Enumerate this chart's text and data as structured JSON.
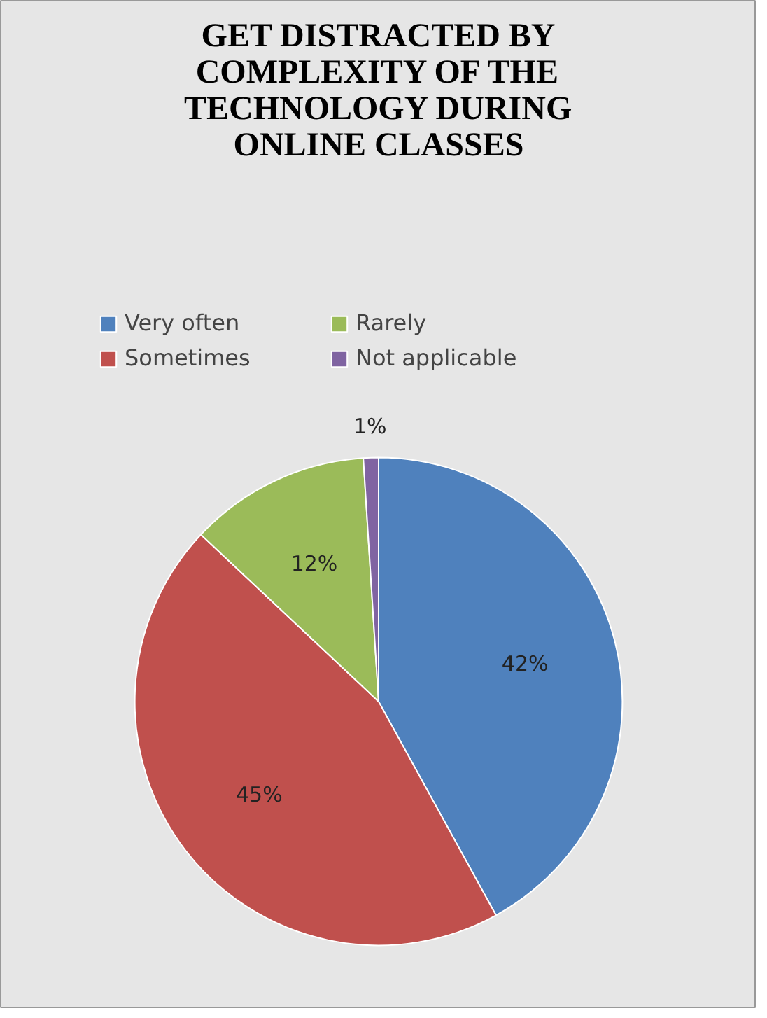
{
  "chart_data": {
    "type": "pie",
    "title": "GET DISTRACTED BY COMPLEXITY OF THE TECHNOLOGY DURING ONLINE CLASSES",
    "categories": [
      "Very often",
      "Sometimes",
      "Rarely",
      "Not applicable"
    ],
    "values": [
      42,
      45,
      12,
      1
    ],
    "colors": [
      "#4f81bd",
      "#c0504d",
      "#9bbb59",
      "#8064a2"
    ],
    "value_labels": [
      "42%",
      "45%",
      "12%",
      "1%"
    ],
    "legend": "top"
  }
}
